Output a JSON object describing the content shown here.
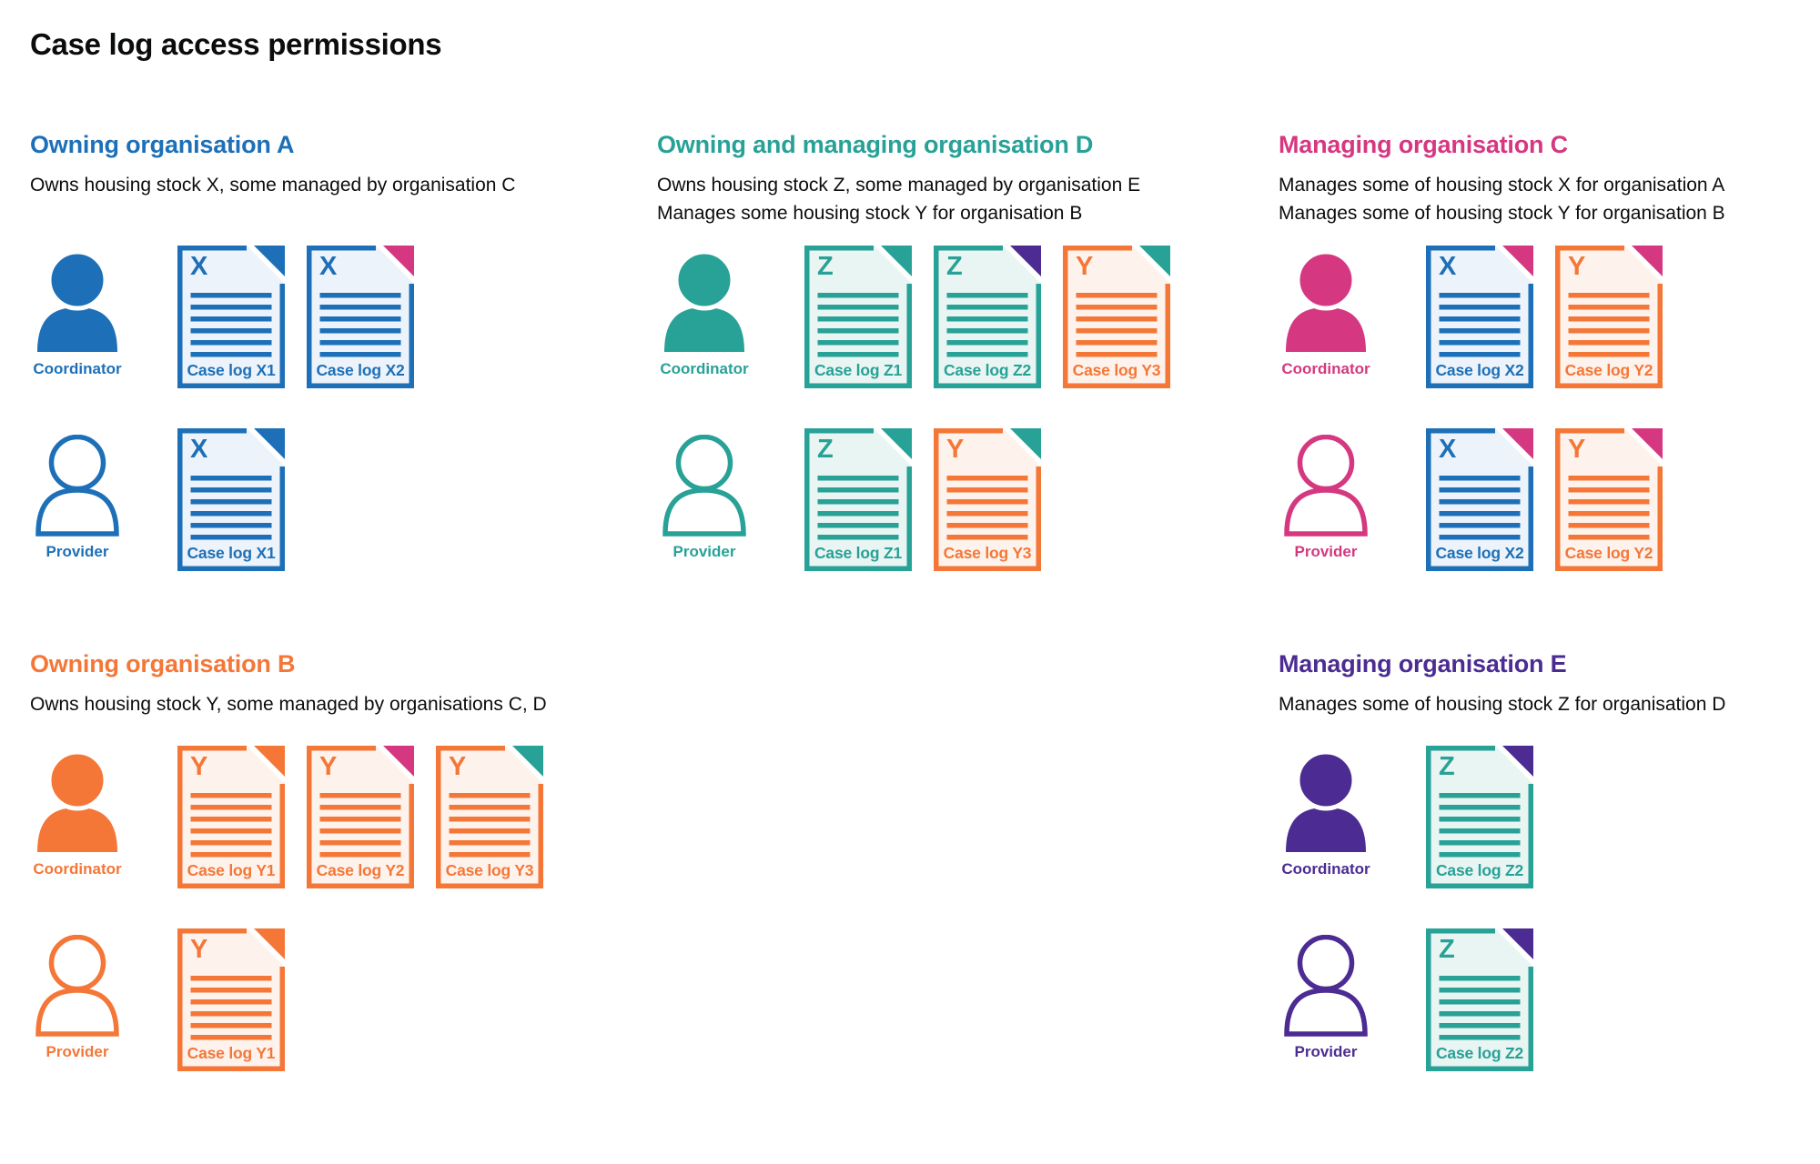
{
  "page_title": "Case log access permissions",
  "palette": {
    "blue": "#1d70b8",
    "teal": "#28a197",
    "pink": "#d53880",
    "orange": "#f47738",
    "purple": "#4c2c92",
    "text": "#0b0c0c",
    "background": "#ffffff"
  },
  "tints": {
    "blue": "#edf3fa",
    "teal": "#e9f5f2",
    "orange": "#fdf3ec"
  },
  "organisations": [
    {
      "id": "org-a",
      "name": "Owning organisation A",
      "color": "blue",
      "description_lines": [
        "Owns housing stock X, some managed by organisation C"
      ],
      "roles": [
        {
          "label": "Coordinator",
          "icon": "person-filled",
          "documents": [
            {
              "letter": "X",
              "label": "Case log X1",
              "doc_color": "blue",
              "corner_color": "blue"
            },
            {
              "letter": "X",
              "label": "Case log X2",
              "doc_color": "blue",
              "corner_color": "pink"
            }
          ]
        },
        {
          "label": "Provider",
          "icon": "person-outline",
          "documents": [
            {
              "letter": "X",
              "label": "Case log X1",
              "doc_color": "blue",
              "corner_color": "blue"
            }
          ]
        }
      ]
    },
    {
      "id": "org-d",
      "name": "Owning and managing organisation D",
      "color": "teal",
      "description_lines": [
        "Owns housing stock Z, some managed by organisation E",
        "Manages some housing stock Y for organisation B"
      ],
      "roles": [
        {
          "label": "Coordinator",
          "icon": "person-filled",
          "documents": [
            {
              "letter": "Z",
              "label": "Case log Z1",
              "doc_color": "teal",
              "corner_color": "teal"
            },
            {
              "letter": "Z",
              "label": "Case log Z2",
              "doc_color": "teal",
              "corner_color": "purple"
            },
            {
              "letter": "Y",
              "label": "Case log Y3",
              "doc_color": "orange",
              "corner_color": "teal"
            }
          ]
        },
        {
          "label": "Provider",
          "icon": "person-outline",
          "documents": [
            {
              "letter": "Z",
              "label": "Case log Z1",
              "doc_color": "teal",
              "corner_color": "teal"
            },
            {
              "letter": "Y",
              "label": "Case log Y3",
              "doc_color": "orange",
              "corner_color": "teal"
            }
          ]
        }
      ]
    },
    {
      "id": "org-c",
      "name": "Managing organisation C",
      "color": "pink",
      "description_lines": [
        "Manages some of housing stock X for organisation A",
        "Manages some of housing stock Y for organisation B"
      ],
      "roles": [
        {
          "label": "Coordinator",
          "icon": "person-filled",
          "documents": [
            {
              "letter": "X",
              "label": "Case log X2",
              "doc_color": "blue",
              "corner_color": "pink"
            },
            {
              "letter": "Y",
              "label": "Case log Y2",
              "doc_color": "orange",
              "corner_color": "pink"
            }
          ]
        },
        {
          "label": "Provider",
          "icon": "person-outline",
          "documents": [
            {
              "letter": "X",
              "label": "Case log X2",
              "doc_color": "blue",
              "corner_color": "pink"
            },
            {
              "letter": "Y",
              "label": "Case log Y2",
              "doc_color": "orange",
              "corner_color": "pink"
            }
          ]
        }
      ]
    },
    {
      "id": "org-b",
      "name": "Owning organisation B",
      "color": "orange",
      "description_lines": [
        "Owns housing stock Y, some managed by organisations C, D"
      ],
      "roles": [
        {
          "label": "Coordinator",
          "icon": "person-filled",
          "documents": [
            {
              "letter": "Y",
              "label": "Case log Y1",
              "doc_color": "orange",
              "corner_color": "orange"
            },
            {
              "letter": "Y",
              "label": "Case log Y2",
              "doc_color": "orange",
              "corner_color": "pink"
            },
            {
              "letter": "Y",
              "label": "Case log Y3",
              "doc_color": "orange",
              "corner_color": "teal"
            }
          ]
        },
        {
          "label": "Provider",
          "icon": "person-outline",
          "documents": [
            {
              "letter": "Y",
              "label": "Case log Y1",
              "doc_color": "orange",
              "corner_color": "orange"
            }
          ]
        }
      ]
    },
    {
      "id": "org-e",
      "name": "Managing organisation E",
      "color": "purple",
      "description_lines": [
        "Manages some of housing stock Z for organisation D"
      ],
      "roles": [
        {
          "label": "Coordinator",
          "icon": "person-filled",
          "documents": [
            {
              "letter": "Z",
              "label": "Case log Z2",
              "doc_color": "teal",
              "corner_color": "purple"
            }
          ]
        },
        {
          "label": "Provider",
          "icon": "person-outline",
          "documents": [
            {
              "letter": "Z",
              "label": "Case log Z2",
              "doc_color": "teal",
              "corner_color": "purple"
            }
          ]
        }
      ]
    }
  ]
}
